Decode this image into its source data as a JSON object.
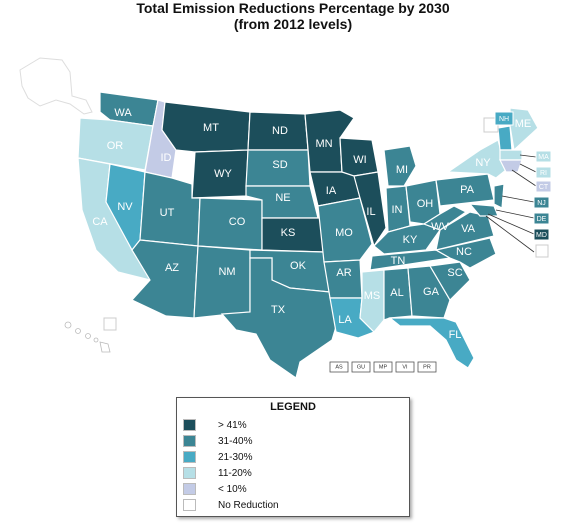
{
  "title": {
    "line1": "Total Emission Reductions Percentage by 2030",
    "line2": "(from 2012 levels)"
  },
  "colors": {
    "gt41": "#1c4e5b",
    "c31_40": "#3c8594",
    "c21_30": "#48aac4",
    "c11_20": "#b6dfe6",
    "lt10": "#c3cbe6",
    "none": "#ffffff"
  },
  "legend": {
    "title": "LEGEND",
    "items": [
      {
        "label": "> 41%",
        "color": "#1c4e5b"
      },
      {
        "label": "31-40%",
        "color": "#3c8594"
      },
      {
        "label": "21-30%",
        "color": "#48aac4"
      },
      {
        "label": "11-20%",
        "color": "#b6dfe6"
      },
      {
        "label": "< 10%",
        "color": "#c3cbe6"
      },
      {
        "label": "No Reduction",
        "color": "#ffffff"
      }
    ]
  },
  "states": {
    "WA": "WA",
    "OR": "OR",
    "CA": "CA",
    "ID": "ID",
    "NV": "NV",
    "MT": "MT",
    "WY": "WY",
    "UT": "UT",
    "AZ": "AZ",
    "CO": "CO",
    "NM": "NM",
    "ND": "ND",
    "SD": "SD",
    "NE": "NE",
    "KS": "KS",
    "OK": "OK",
    "TX": "TX",
    "MN": "MN",
    "IA": "IA",
    "MO": "MO",
    "AR": "AR",
    "LA": "LA",
    "WI": "WI",
    "IL": "IL",
    "MI": "MI",
    "IN": "IN",
    "OH": "OH",
    "KY": "KY",
    "TN": "TN",
    "MS": "MS",
    "AL": "AL",
    "GA": "GA",
    "FL": "FL",
    "SC": "SC",
    "NC": "NC",
    "VA": "VA",
    "WV": "WV",
    "PA": "PA",
    "NY": "NY",
    "ME": "ME",
    "NH": "NH",
    "MA": "MA",
    "RI": "RI",
    "CT": "CT",
    "NJ": "NJ",
    "DE": "DE",
    "MD": "MD"
  },
  "territories": [
    "AS",
    "GU",
    "MP",
    "VI",
    "PR"
  ]
}
